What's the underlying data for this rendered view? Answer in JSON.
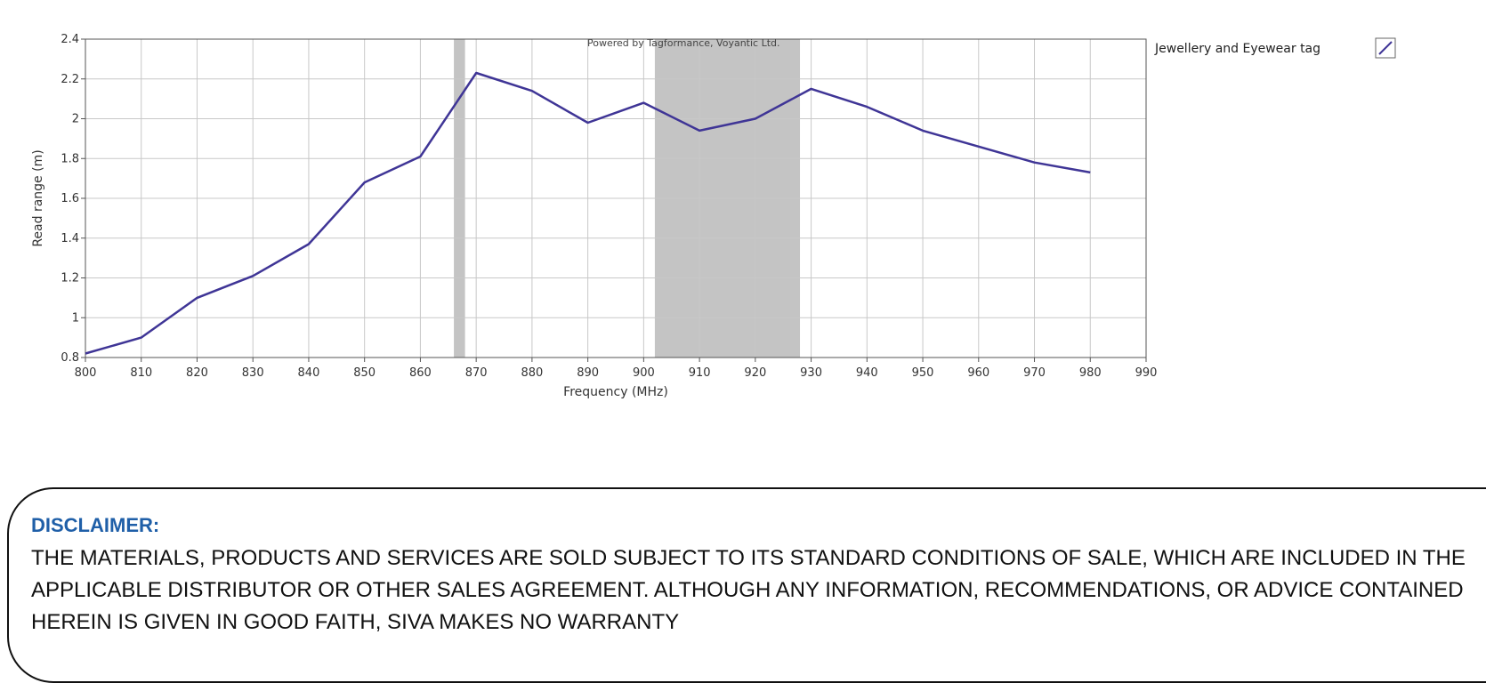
{
  "chart_data": {
    "type": "line",
    "xlabel": "Frequency (MHz)",
    "ylabel": "Read range (m)",
    "credit": "Powered by Tagformance, Voyantic Ltd.",
    "xlim": [
      800,
      990
    ],
    "ylim": [
      0.8,
      2.4
    ],
    "x_ticks": [
      "800",
      "810",
      "820",
      "830",
      "840",
      "850",
      "860",
      "870",
      "880",
      "890",
      "900",
      "910",
      "920",
      "930",
      "940",
      "950",
      "960",
      "970",
      "980",
      "990"
    ],
    "y_ticks": [
      "0.8",
      "1",
      "1.2",
      "1.4",
      "1.6",
      "1.8",
      "2",
      "2.2",
      "2.4"
    ],
    "grid": true,
    "shaded_bands": [
      [
        866,
        868
      ],
      [
        902,
        928
      ]
    ],
    "series": [
      {
        "name": "Jewellery and Eyewear tag",
        "color": "#3f3596",
        "x": [
          800,
          810,
          820,
          830,
          840,
          850,
          860,
          870,
          880,
          890,
          900,
          910,
          920,
          930,
          940,
          950,
          960,
          970,
          980
        ],
        "y": [
          0.82,
          0.9,
          1.1,
          1.21,
          1.37,
          1.68,
          1.81,
          2.23,
          2.14,
          1.98,
          2.08,
          1.94,
          2.0,
          2.15,
          2.06,
          1.94,
          1.86,
          1.78,
          1.73
        ]
      }
    ],
    "legend_position": "top-right"
  },
  "disclaimer": {
    "title": "DISCLAIMER:",
    "text": "THE MATERIALS, PRODUCTS AND SERVICES ARE SOLD SUBJECT TO ITS STANDARD CONDITIONS OF SALE, WHICH ARE INCLUDED IN THE APPLICABLE DISTRIBUTOR OR OTHER SALES AGREEMENT. ALTHOUGH ANY INFORMATION, RECOMMENDATIONS, OR ADVICE CONTAINED HEREIN IS GIVEN IN GOOD FAITH, SIVA MAKES NO WARRANTY"
  }
}
